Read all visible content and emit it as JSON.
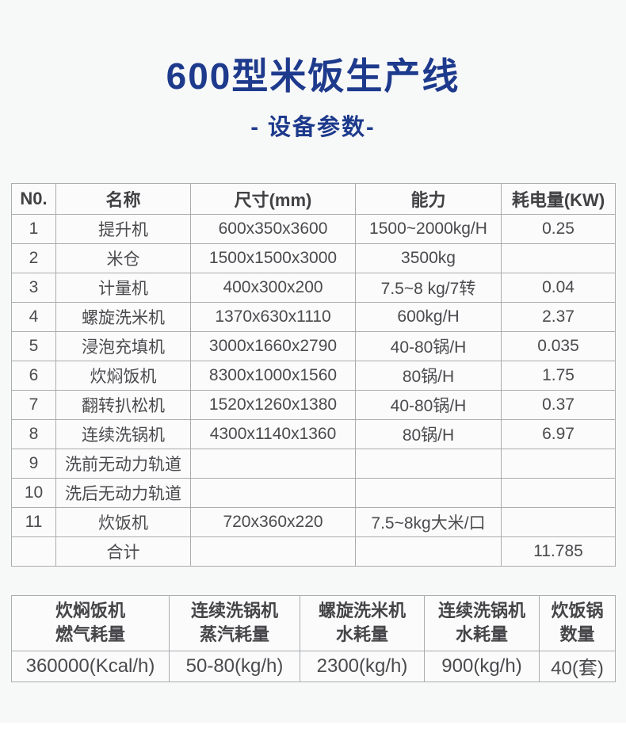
{
  "page": {
    "title": "600型米饭生产线",
    "subtitle": "- 设备参数-",
    "accent_color": "#1d3a8c",
    "background_color": "#f7f8f8"
  },
  "main_table": {
    "headers": [
      "N0.",
      "名称",
      "尺寸(mm)",
      "能力",
      "耗电量(KW)"
    ],
    "rows": [
      [
        "1",
        "提升机",
        "600x350x3600",
        "1500~2000kg/H",
        "0.25"
      ],
      [
        "2",
        "米仓",
        "1500x1500x3000",
        "3500kg",
        ""
      ],
      [
        "3",
        "计量机",
        "400x300x200",
        "7.5~8 kg/7转",
        "0.04"
      ],
      [
        "4",
        "螺旋洗米机",
        "1370x630x1110",
        "600kg/H",
        "2.37"
      ],
      [
        "5",
        "浸泡充填机",
        "3000x1660x2790",
        "40-80锅/H",
        "0.035"
      ],
      [
        "6",
        "炊焖饭机",
        "8300x1000x1560",
        "80锅/H",
        "1.75"
      ],
      [
        "7",
        "翻转扒松机",
        "1520x1260x1380",
        "40-80锅/H",
        "0.37"
      ],
      [
        "8",
        "连续洗锅机",
        "4300x1140x1360",
        "80锅/H",
        "6.97"
      ],
      [
        "9",
        "洗前无动力轨道",
        "",
        "",
        ""
      ],
      [
        "10",
        "洗后无动力轨道",
        "",
        "",
        ""
      ],
      [
        "11",
        "炊饭机",
        "720x360x220",
        "7.5~8kg大米/口",
        ""
      ],
      [
        "",
        "合计",
        "",
        "",
        "11.785"
      ]
    ]
  },
  "bottom_table": {
    "columns": [
      {
        "header": [
          "炊焖饭机",
          "燃气耗量"
        ],
        "value": "360000(Kcal/h)"
      },
      {
        "header": [
          "连续洗锅机",
          "蒸汽耗量"
        ],
        "value": "50-80(kg/h)"
      },
      {
        "header": [
          "螺旋洗米机",
          "水耗量"
        ],
        "value": "2300(kg/h)"
      },
      {
        "header": [
          "连续洗锅机",
          "水耗量"
        ],
        "value": "900(kg/h)"
      },
      {
        "header": [
          "炊饭锅",
          "数量"
        ],
        "value": "40(套)"
      }
    ]
  }
}
